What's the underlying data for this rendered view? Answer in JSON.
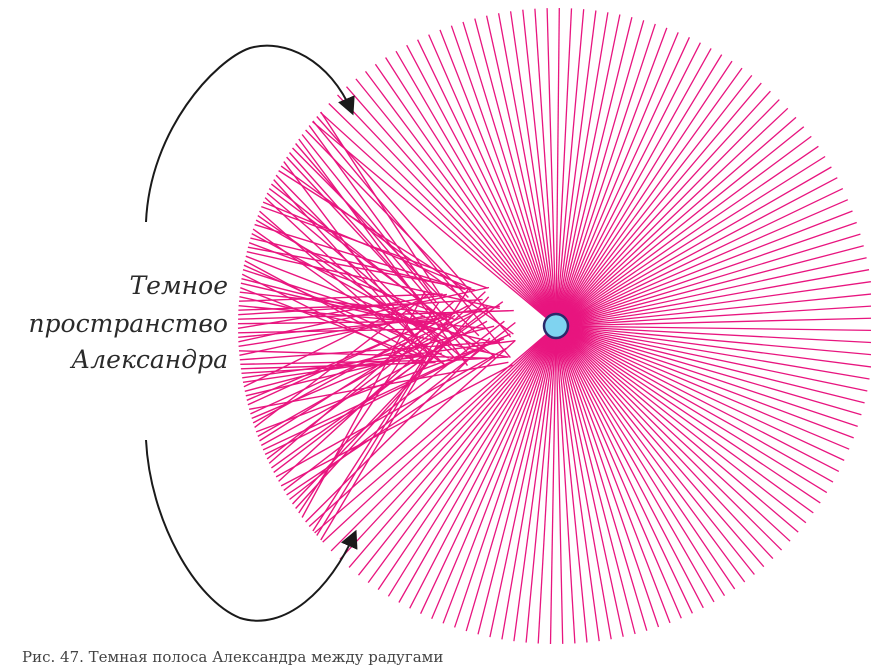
{
  "diagram": {
    "label_lines": [
      "Темное",
      "пространство",
      "Александра"
    ],
    "caption": "Рис. 47. Темная полоса Александра между радугами"
  },
  "colors": {
    "rays": "#e8157f",
    "sun_fill": "#7fd3f0",
    "sun_stroke": "#2a2a6a",
    "arrow": "#1a1a1a",
    "background": "#ffffff"
  }
}
